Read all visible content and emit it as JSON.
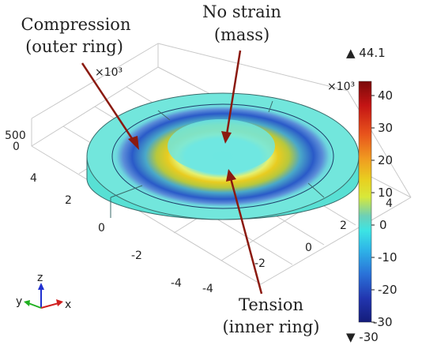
{
  "annotations": {
    "compression_line1": "Compression",
    "compression_line2": "(outer ring)",
    "nostrain_line1": "No strain",
    "nostrain_line2": "(mass)",
    "tension_line1": "Tension",
    "tension_line2": "(inner ring)"
  },
  "axes": {
    "z_scale": "×10³",
    "x_scale": "×10³",
    "z_ticks": [
      "500",
      "0"
    ],
    "y_ticks": [
      "4",
      "2",
      "0",
      "-2",
      "-4"
    ],
    "x_ticks": [
      "-4",
      "-2",
      "0",
      "2",
      "4"
    ],
    "triad": {
      "x": "x",
      "y": "y",
      "z": "z"
    }
  },
  "colorbar": {
    "max_label": "▲ 44.1",
    "min_label": "▼ -30",
    "ticks": [
      "40",
      "30",
      "20",
      "10",
      "0",
      "-10",
      "-20",
      "-30"
    ],
    "colors": [
      "#7a0a0a",
      "#c41414",
      "#e8541c",
      "#f09a20",
      "#e8d020",
      "#d8e83a",
      "#6cd0b8",
      "#3ce4e4",
      "#2eb4e8",
      "#2a72d8",
      "#2236b0",
      "#141c7a"
    ]
  }
}
